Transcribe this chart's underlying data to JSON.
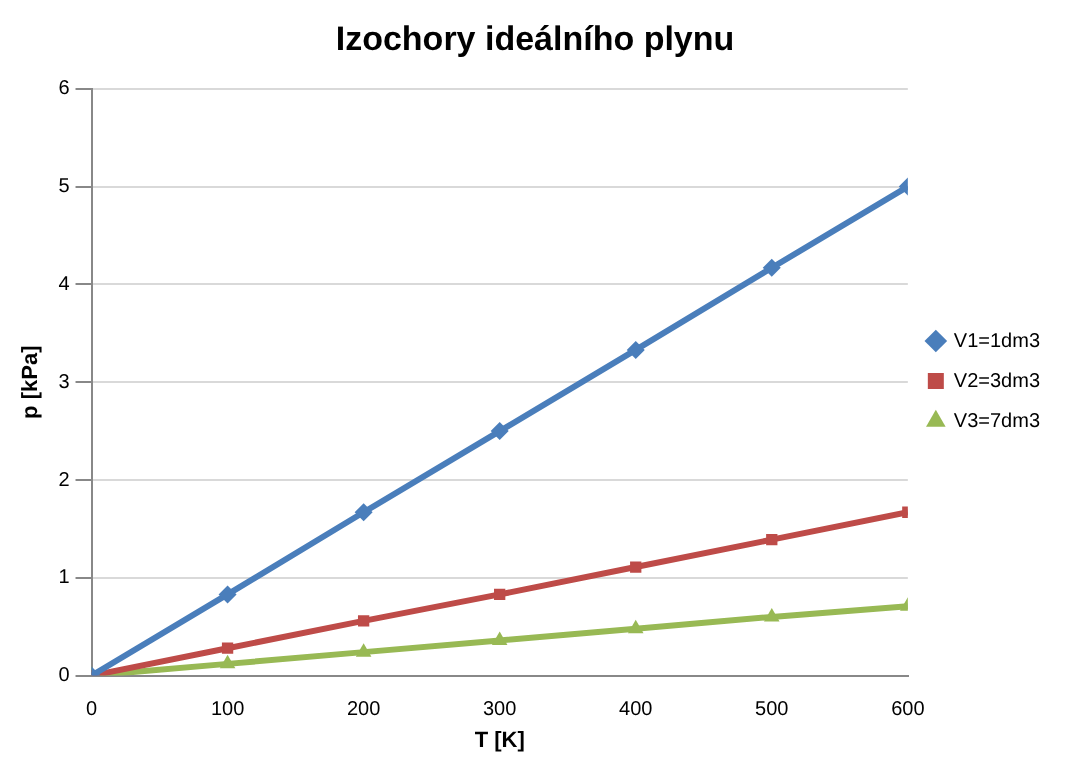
{
  "chart_data": {
    "type": "line",
    "title": "Izochory ideálního plynu",
    "xlabel": "T [K]",
    "ylabel": "p [kPa]",
    "x": [
      0,
      100,
      200,
      300,
      400,
      500,
      600
    ],
    "series": [
      {
        "name": "V1=1dm3",
        "color": "#4a7ebb",
        "marker": "diamond",
        "values": [
          0,
          0.83,
          1.67,
          2.5,
          3.33,
          4.17,
          5
        ]
      },
      {
        "name": "V2=3dm3",
        "color": "#be4b48",
        "marker": "square",
        "values": [
          0,
          0.28,
          0.56,
          0.83,
          1.11,
          1.39,
          1.67
        ]
      },
      {
        "name": "V3=7dm3",
        "color": "#98b954",
        "marker": "triangle",
        "values": [
          0,
          0.12,
          0.24,
          0.36,
          0.48,
          0.6,
          0.71
        ]
      }
    ],
    "xlim": [
      0,
      600
    ],
    "xticks": [
      0,
      100,
      200,
      300,
      400,
      500,
      600
    ],
    "ylim": [
      0,
      6
    ],
    "yticks": [
      0,
      1,
      2,
      3,
      4,
      5,
      6
    ],
    "grid": "y",
    "legend": "right",
    "line_style": "solid"
  }
}
